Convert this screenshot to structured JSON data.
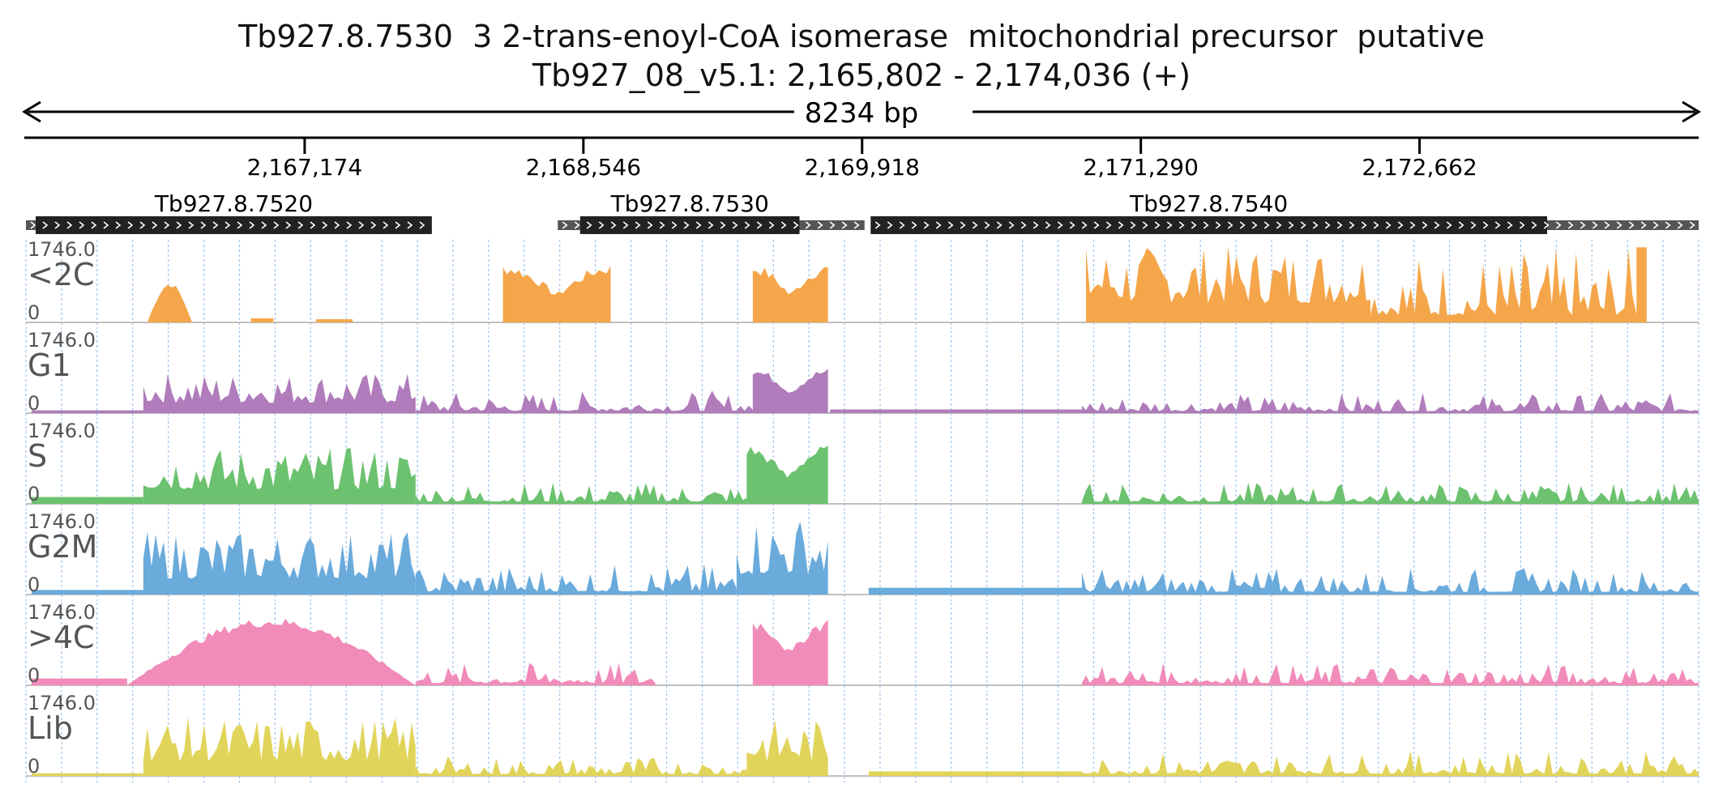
{
  "header": {
    "title": "Tb927.8.7530  3 2-trans-enoyl-CoA isomerase  mitochondrial precursor  putative",
    "location": "Tb927_08_v5.1: 2,165,802 - 2,174,036 (+)",
    "span_label": "8234 bp"
  },
  "chart_data": {
    "type": "area",
    "region": {
      "chromosome": "Tb927_08_v5.1",
      "start": 2165802,
      "end": 2174036,
      "strand": "+"
    },
    "xlim": [
      2165802,
      2174036
    ],
    "ruler_ticks": [
      2167174,
      2168546,
      2169918,
      2171290,
      2172662
    ],
    "ruler_tick_labels": [
      "2,167,174",
      "2,168,546",
      "2,169,918",
      "2,171,290",
      "2,172,662"
    ],
    "genes": [
      {
        "name": "Tb927.8.7520",
        "utr5": [
          2165802,
          2165850
        ],
        "cds": [
          2165850,
          2167800
        ],
        "utr3": [
          2167800,
          2167800
        ]
      },
      {
        "name": "Tb927.8.7530",
        "utr5": [
          2168420,
          2168530
        ],
        "cds": [
          2168530,
          2169610
        ],
        "utr3": [
          2169610,
          2169930
        ]
      },
      {
        "name": "Tb927.8.7540",
        "utr5": [
          2169960,
          2169960
        ],
        "cds": [
          2169960,
          2173290
        ],
        "utr3": [
          2173290,
          2174036
        ]
      }
    ],
    "tracks": [
      {
        "name": "<2C",
        "color": "#f5a64a",
        "ymax": "1746.0",
        "ymin": "0",
        "segments": [
          {
            "start": 2166400,
            "end": 2166620,
            "peak": 900,
            "shape": "dome"
          },
          {
            "start": 2166910,
            "end": 2167020,
            "peak": 90,
            "shape": "flat"
          },
          {
            "start": 2167230,
            "end": 2167410,
            "peak": 70,
            "shape": "flat"
          },
          {
            "start": 2168150,
            "end": 2168680,
            "peak": 1300,
            "shape": "u"
          },
          {
            "start": 2169380,
            "end": 2169750,
            "peak": 1300,
            "shape": "u"
          },
          {
            "start": 2171020,
            "end": 2172420,
            "peak": 1700,
            "shape": "jagged"
          },
          {
            "start": 2172420,
            "end": 2173730,
            "peak": 1650,
            "shape": "jagged-low"
          },
          {
            "start": 2173730,
            "end": 2173780,
            "peak": 1650,
            "shape": "flat"
          }
        ]
      },
      {
        "name": "G1",
        "color": "#b07cbb",
        "ymax": "1746.0",
        "ymin": "0",
        "segments": [
          {
            "start": 2165830,
            "end": 2166380,
            "peak": 60,
            "shape": "flat"
          },
          {
            "start": 2166380,
            "end": 2167720,
            "peak": 900,
            "shape": "jagged"
          },
          {
            "start": 2167720,
            "end": 2169600,
            "peak": 500,
            "shape": "jagged-low"
          },
          {
            "start": 2169380,
            "end": 2169750,
            "peak": 1000,
            "shape": "u"
          },
          {
            "start": 2169760,
            "end": 2171000,
            "peak": 80,
            "shape": "flat"
          },
          {
            "start": 2171000,
            "end": 2174036,
            "peak": 450,
            "shape": "jagged-low"
          }
        ]
      },
      {
        "name": "S",
        "color": "#6cc26f",
        "ymax": "1746.0",
        "ymin": "0",
        "segments": [
          {
            "start": 2165830,
            "end": 2166380,
            "peak": 150,
            "shape": "flat"
          },
          {
            "start": 2166380,
            "end": 2167720,
            "peak": 1250,
            "shape": "jagged"
          },
          {
            "start": 2167720,
            "end": 2169350,
            "peak": 500,
            "shape": "jagged-low"
          },
          {
            "start": 2169350,
            "end": 2169750,
            "peak": 1300,
            "shape": "u"
          },
          {
            "start": 2171000,
            "end": 2174036,
            "peak": 480,
            "shape": "jagged-low"
          }
        ]
      },
      {
        "name": "G2M",
        "color": "#6aabdc",
        "ymax": "1746.0",
        "ymin": "0",
        "segments": [
          {
            "start": 2165830,
            "end": 2166380,
            "peak": 100,
            "shape": "flat"
          },
          {
            "start": 2166380,
            "end": 2167720,
            "peak": 1400,
            "shape": "jagged"
          },
          {
            "start": 2167720,
            "end": 2169300,
            "peak": 700,
            "shape": "jagged-low"
          },
          {
            "start": 2169300,
            "end": 2169750,
            "peak": 1750,
            "shape": "jagged"
          },
          {
            "start": 2169950,
            "end": 2171000,
            "peak": 150,
            "shape": "flat"
          },
          {
            "start": 2171000,
            "end": 2174036,
            "peak": 600,
            "shape": "jagged-low"
          }
        ]
      },
      {
        "name": ">4C",
        "color": "#f18bba",
        "ymax": "1746.0",
        "ymin": "0",
        "segments": [
          {
            "start": 2165830,
            "end": 2166300,
            "peak": 150,
            "shape": "flat"
          },
          {
            "start": 2166300,
            "end": 2167720,
            "peak": 1500,
            "shape": "dome"
          },
          {
            "start": 2167720,
            "end": 2168900,
            "peak": 500,
            "shape": "jagged-low"
          },
          {
            "start": 2169380,
            "end": 2169750,
            "peak": 1500,
            "shape": "u"
          },
          {
            "start": 2171000,
            "end": 2174036,
            "peak": 500,
            "shape": "jagged-low"
          }
        ]
      },
      {
        "name": "Lib",
        "color": "#e1d45a",
        "ymax": "1746.0",
        "ymin": "0",
        "segments": [
          {
            "start": 2165830,
            "end": 2166380,
            "peak": 60,
            "shape": "flat"
          },
          {
            "start": 2166380,
            "end": 2167720,
            "peak": 1300,
            "shape": "jagged"
          },
          {
            "start": 2167720,
            "end": 2169350,
            "peak": 450,
            "shape": "jagged-low"
          },
          {
            "start": 2169350,
            "end": 2169750,
            "peak": 1250,
            "shape": "jagged"
          },
          {
            "start": 2169950,
            "end": 2171000,
            "peak": 100,
            "shape": "flat"
          },
          {
            "start": 2171000,
            "end": 2174036,
            "peak": 550,
            "shape": "jagged-low"
          }
        ]
      }
    ]
  }
}
